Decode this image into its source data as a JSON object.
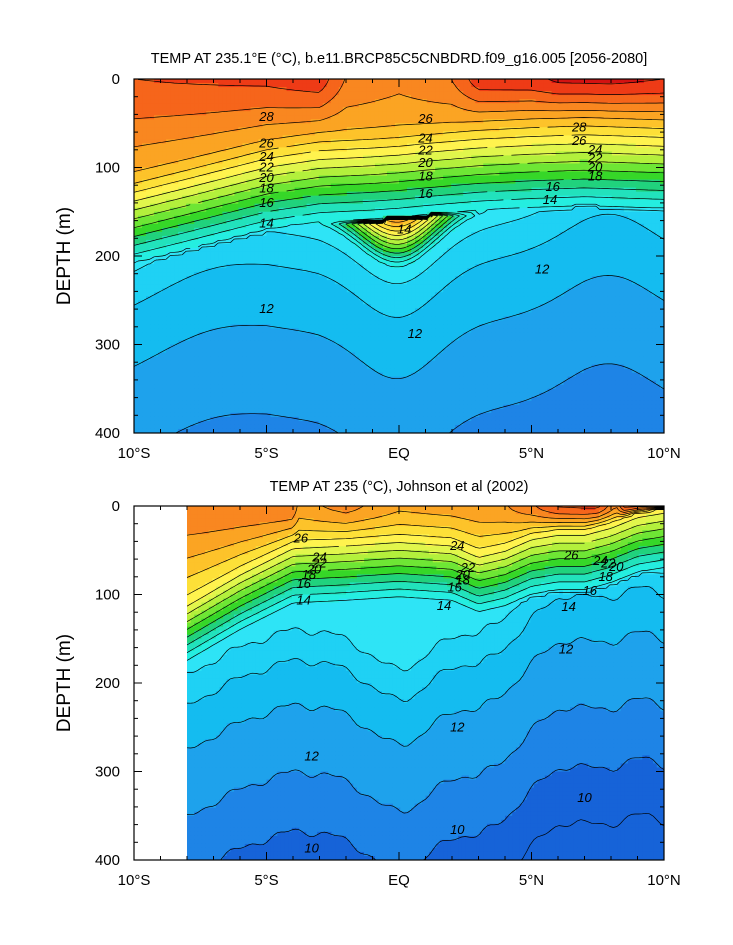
{
  "chart_data": [
    {
      "type": "contour",
      "title": "TEMP AT 235.1°E (°C), b.e11.BRCP85C5CNBDRD.f09_g16.005 [2056-2080]",
      "xlabel": "",
      "ylabel": "DEPTH (m)",
      "xlim": [
        -10,
        10
      ],
      "ylim": [
        400,
        0
      ],
      "x_tick_values": [
        -10,
        -5,
        0,
        5,
        10
      ],
      "x_tick_labels": [
        "10°S",
        "5°S",
        "EQ",
        "5°N",
        "10°N"
      ],
      "y_tick_values": [
        0,
        100,
        200,
        300,
        400
      ],
      "y_tick_labels": [
        "0",
        "100",
        "200",
        "300",
        "400"
      ],
      "contour_interval_degC": 1,
      "data_extent_lat": [
        -10,
        10
      ],
      "colors": {
        "29": "#d31212",
        "28": "#ee3b16",
        "27": "#f6651b",
        "26": "#f98720",
        "25": "#fba423",
        "24": "#fdc32a",
        "23": "#fde038",
        "22": "#fff34e",
        "21": "#e1f64c",
        "20": "#b3f03c",
        "19": "#6ee635",
        "18": "#36d728",
        "17": "#21d27d",
        "16": "#22e2bc",
        "15": "#25eee0",
        "14": "#2ee4f6",
        "13": "#1fd1f4",
        "12": "#14bcf0",
        "11": "#1ea2ec",
        "10": "#1e84e6",
        "9": "#1663d8"
      },
      "contour_labels": [
        {
          "text": "28",
          "lat": -5.0,
          "depth": 43
        },
        {
          "text": "26",
          "lat": -5.0,
          "depth": 73
        },
        {
          "text": "24",
          "lat": -5.0,
          "depth": 88
        },
        {
          "text": "22",
          "lat": -5.0,
          "depth": 100
        },
        {
          "text": "20",
          "lat": -5.0,
          "depth": 112
        },
        {
          "text": "18",
          "lat": -5.0,
          "depth": 124
        },
        {
          "text": "16",
          "lat": -5.0,
          "depth": 140
        },
        {
          "text": "14",
          "lat": -5.0,
          "depth": 163
        },
        {
          "text": "26",
          "lat": 1.0,
          "depth": 45
        },
        {
          "text": "24",
          "lat": 1.0,
          "depth": 67
        },
        {
          "text": "22",
          "lat": 1.0,
          "depth": 81
        },
        {
          "text": "20",
          "lat": 1.0,
          "depth": 95
        },
        {
          "text": "18",
          "lat": 1.0,
          "depth": 110
        },
        {
          "text": "16",
          "lat": 1.0,
          "depth": 130
        },
        {
          "text": "14",
          "lat": 0.2,
          "depth": 170
        },
        {
          "text": "28",
          "lat": 6.8,
          "depth": 55
        },
        {
          "text": "26",
          "lat": 6.8,
          "depth": 70
        },
        {
          "text": "24",
          "lat": 7.4,
          "depth": 80
        },
        {
          "text": "22",
          "lat": 7.4,
          "depth": 90
        },
        {
          "text": "20",
          "lat": 7.4,
          "depth": 100
        },
        {
          "text": "18",
          "lat": 7.4,
          "depth": 110
        },
        {
          "text": "16",
          "lat": 5.8,
          "depth": 122
        },
        {
          "text": "14",
          "lat": 5.7,
          "depth": 137
        },
        {
          "text": "12",
          "lat": 5.4,
          "depth": 215
        },
        {
          "text": "12",
          "lat": -5.0,
          "depth": 260
        },
        {
          "text": "12",
          "lat": 0.6,
          "depth": 288
        }
      ]
    },
    {
      "type": "contour",
      "title": "TEMP AT 235 (°C), Johnson et al (2002)",
      "xlabel": "",
      "ylabel": "DEPTH (m)",
      "xlim": [
        -10,
        10
      ],
      "ylim": [
        400,
        0
      ],
      "x_tick_values": [
        -10,
        -5,
        0,
        5,
        10
      ],
      "x_tick_labels": [
        "10°S",
        "5°S",
        "EQ",
        "5°N",
        "10°N"
      ],
      "y_tick_values": [
        0,
        100,
        200,
        300,
        400
      ],
      "y_tick_labels": [
        "0",
        "100",
        "200",
        "300",
        "400"
      ],
      "contour_interval_degC": 1,
      "data_extent_lat": [
        -8,
        10
      ],
      "contour_labels": [
        {
          "text": "26",
          "lat": -3.7,
          "depth": 37
        },
        {
          "text": "24",
          "lat": -3.0,
          "depth": 58
        },
        {
          "text": "22",
          "lat": -3.0,
          "depth": 65
        },
        {
          "text": "20",
          "lat": -3.2,
          "depth": 72
        },
        {
          "text": "18",
          "lat": -3.4,
          "depth": 78
        },
        {
          "text": "16",
          "lat": -3.6,
          "depth": 88
        },
        {
          "text": "14",
          "lat": -3.6,
          "depth": 107
        },
        {
          "text": "24",
          "lat": 2.2,
          "depth": 45
        },
        {
          "text": "22",
          "lat": 2.6,
          "depth": 70
        },
        {
          "text": "20",
          "lat": 2.4,
          "depth": 78
        },
        {
          "text": "18",
          "lat": 2.4,
          "depth": 84
        },
        {
          "text": "16",
          "lat": 2.1,
          "depth": 92
        },
        {
          "text": "14",
          "lat": 1.7,
          "depth": 113
        },
        {
          "text": "26",
          "lat": 6.5,
          "depth": 56
        },
        {
          "text": "24",
          "lat": 7.6,
          "depth": 62
        },
        {
          "text": "22",
          "lat": 7.9,
          "depth": 65
        },
        {
          "text": "20",
          "lat": 8.2,
          "depth": 69
        },
        {
          "text": "18",
          "lat": 7.8,
          "depth": 80
        },
        {
          "text": "16",
          "lat": 7.2,
          "depth": 96
        },
        {
          "text": "14",
          "lat": 6.4,
          "depth": 114
        },
        {
          "text": "12",
          "lat": 6.3,
          "depth": 162
        },
        {
          "text": "12",
          "lat": 2.2,
          "depth": 250
        },
        {
          "text": "12",
          "lat": -3.3,
          "depth": 283
        },
        {
          "text": "10",
          "lat": 7.0,
          "depth": 330
        },
        {
          "text": "10",
          "lat": 2.2,
          "depth": 366
        },
        {
          "text": "10",
          "lat": -3.3,
          "depth": 387
        }
      ]
    }
  ]
}
